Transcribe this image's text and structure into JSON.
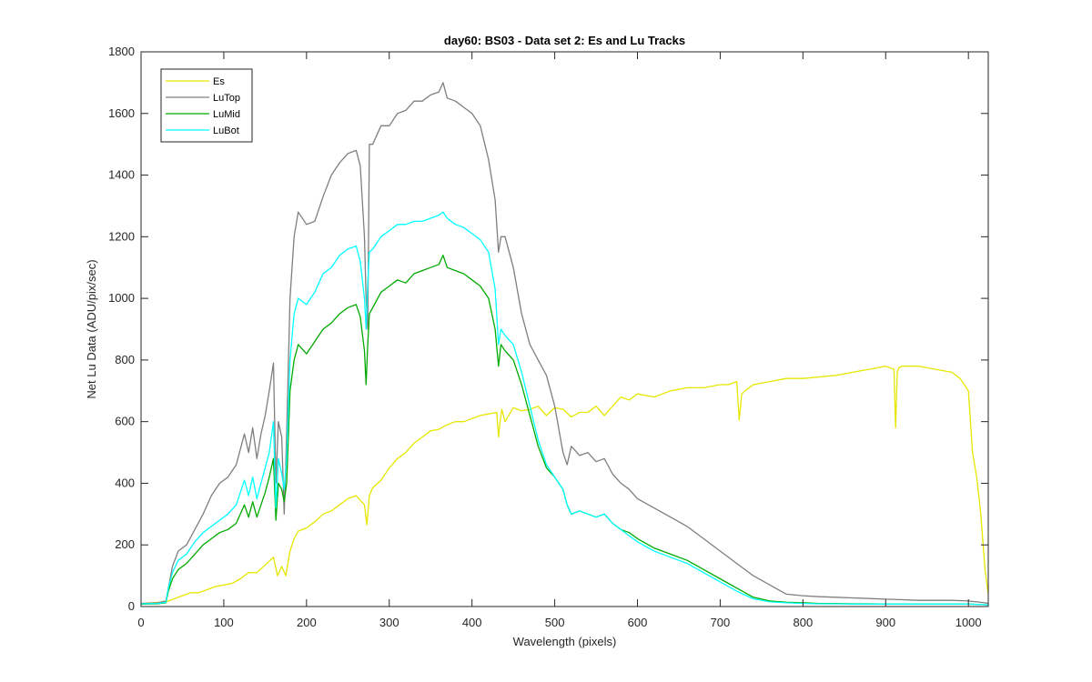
{
  "chart_data": {
    "type": "line",
    "title": "day60: BS03 - Data set 2: Es and Lu Tracks",
    "xlabel": "Wavelength (pixels)",
    "ylabel": "Net Lu Data (ADU/pix/sec)",
    "xlim": [
      0,
      1024
    ],
    "ylim": [
      0,
      1800
    ],
    "xticks": [
      0,
      100,
      200,
      300,
      400,
      500,
      600,
      700,
      800,
      900,
      1000
    ],
    "yticks": [
      0,
      200,
      400,
      600,
      800,
      1000,
      1200,
      1400,
      1600,
      1800
    ],
    "grid": false,
    "legend_position": "top-left",
    "series": [
      {
        "name": "Es",
        "color": "#E6E600",
        "x": [
          0,
          30,
          40,
          50,
          60,
          70,
          80,
          90,
          100,
          110,
          120,
          130,
          140,
          150,
          160,
          165,
          170,
          175,
          180,
          185,
          190,
          200,
          210,
          220,
          230,
          240,
          250,
          260,
          270,
          273,
          276,
          280,
          290,
          300,
          310,
          320,
          330,
          340,
          350,
          360,
          370,
          380,
          390,
          400,
          410,
          420,
          430,
          432,
          434,
          436,
          440,
          450,
          460,
          470,
          480,
          490,
          500,
          510,
          520,
          530,
          540,
          550,
          560,
          570,
          580,
          590,
          600,
          620,
          640,
          660,
          680,
          700,
          710,
          720,
          723,
          726,
          730,
          740,
          760,
          780,
          800,
          820,
          840,
          860,
          880,
          890,
          900,
          910,
          912,
          914,
          916,
          920,
          940,
          960,
          980,
          990,
          1000,
          1005,
          1010,
          1015,
          1020,
          1024
        ],
        "y": [
          10,
          15,
          25,
          35,
          45,
          45,
          55,
          65,
          70,
          75,
          90,
          110,
          110,
          135,
          160,
          100,
          130,
          100,
          180,
          220,
          245,
          255,
          275,
          300,
          310,
          330,
          350,
          360,
          330,
          265,
          360,
          385,
          410,
          450,
          480,
          500,
          530,
          550,
          570,
          575,
          590,
          600,
          600,
          610,
          620,
          625,
          630,
          550,
          600,
          640,
          600,
          645,
          635,
          640,
          650,
          620,
          645,
          640,
          615,
          630,
          630,
          650,
          620,
          650,
          680,
          670,
          690,
          680,
          700,
          710,
          710,
          720,
          720,
          730,
          605,
          690,
          700,
          720,
          730,
          740,
          740,
          745,
          750,
          760,
          770,
          775,
          780,
          770,
          580,
          760,
          775,
          780,
          780,
          770,
          760,
          740,
          700,
          500,
          420,
          300,
          120,
          40
        ]
      },
      {
        "name": "LuTop",
        "color": "#7F7F7F",
        "x": [
          0,
          20,
          30,
          33,
          38,
          45,
          55,
          65,
          75,
          85,
          95,
          105,
          115,
          125,
          130,
          135,
          140,
          145,
          150,
          155,
          160,
          163,
          166,
          170,
          173,
          176,
          180,
          185,
          190,
          200,
          210,
          220,
          230,
          240,
          250,
          260,
          265,
          270,
          272,
          274,
          276,
          280,
          290,
          300,
          310,
          320,
          330,
          340,
          350,
          360,
          365,
          370,
          380,
          390,
          400,
          410,
          420,
          428,
          432,
          435,
          440,
          450,
          460,
          470,
          480,
          490,
          500,
          510,
          515,
          520,
          530,
          540,
          550,
          560,
          570,
          580,
          590,
          600,
          620,
          640,
          660,
          680,
          700,
          720,
          740,
          760,
          780,
          800,
          820,
          840,
          860,
          880,
          900,
          920,
          940,
          960,
          980,
          1000,
          1010,
          1020,
          1024
        ],
        "y": [
          10,
          12,
          18,
          60,
          130,
          180,
          200,
          250,
          300,
          360,
          400,
          420,
          460,
          560,
          500,
          580,
          480,
          560,
          620,
          700,
          790,
          400,
          600,
          550,
          300,
          560,
          1000,
          1200,
          1280,
          1240,
          1250,
          1330,
          1400,
          1440,
          1470,
          1480,
          1430,
          1200,
          1000,
          900,
          1500,
          1500,
          1560,
          1560,
          1600,
          1610,
          1640,
          1640,
          1660,
          1670,
          1700,
          1650,
          1640,
          1620,
          1600,
          1560,
          1450,
          1320,
          1150,
          1200,
          1200,
          1100,
          950,
          850,
          800,
          750,
          650,
          500,
          460,
          520,
          490,
          500,
          470,
          480,
          430,
          400,
          380,
          350,
          320,
          290,
          260,
          220,
          180,
          140,
          100,
          70,
          40,
          35,
          32,
          30,
          28,
          26,
          24,
          22,
          20,
          20,
          20,
          18,
          15,
          12,
          10
        ]
      },
      {
        "name": "LuMid",
        "color": "#00AA00",
        "x": [
          0,
          20,
          30,
          33,
          38,
          45,
          55,
          65,
          75,
          85,
          95,
          105,
          115,
          125,
          130,
          135,
          140,
          145,
          150,
          155,
          160,
          163,
          166,
          170,
          173,
          176,
          180,
          185,
          190,
          200,
          210,
          220,
          230,
          240,
          250,
          260,
          265,
          270,
          272,
          274,
          276,
          280,
          290,
          300,
          310,
          320,
          330,
          340,
          350,
          360,
          365,
          370,
          380,
          390,
          400,
          410,
          420,
          428,
          432,
          435,
          440,
          450,
          460,
          470,
          480,
          490,
          500,
          510,
          515,
          520,
          530,
          540,
          550,
          560,
          570,
          580,
          590,
          600,
          620,
          640,
          660,
          680,
          700,
          720,
          740,
          760,
          780,
          800,
          820,
          840,
          860,
          880,
          900,
          920,
          940,
          960,
          980,
          1000,
          1010,
          1020,
          1024
        ],
        "y": [
          8,
          9,
          12,
          50,
          90,
          120,
          140,
          170,
          200,
          220,
          240,
          250,
          270,
          330,
          290,
          340,
          290,
          330,
          370,
          420,
          480,
          280,
          400,
          380,
          340,
          400,
          700,
          800,
          850,
          820,
          860,
          900,
          920,
          950,
          970,
          980,
          940,
          830,
          720,
          850,
          950,
          970,
          1020,
          1040,
          1060,
          1050,
          1080,
          1090,
          1100,
          1110,
          1140,
          1100,
          1090,
          1080,
          1060,
          1040,
          1000,
          900,
          780,
          850,
          830,
          800,
          720,
          620,
          520,
          450,
          420,
          380,
          330,
          300,
          310,
          300,
          290,
          300,
          270,
          250,
          240,
          220,
          190,
          170,
          150,
          120,
          90,
          60,
          30,
          18,
          14,
          12,
          10,
          10,
          9,
          9,
          8,
          8,
          8,
          8,
          8,
          8,
          7,
          6,
          5
        ]
      },
      {
        "name": "LuBot",
        "color": "#00FFFF",
        "x": [
          0,
          20,
          30,
          33,
          38,
          45,
          55,
          65,
          75,
          85,
          95,
          105,
          115,
          125,
          130,
          135,
          140,
          145,
          150,
          155,
          160,
          163,
          166,
          170,
          173,
          176,
          180,
          185,
          190,
          200,
          210,
          220,
          230,
          240,
          250,
          260,
          265,
          270,
          272,
          274,
          276,
          280,
          290,
          300,
          310,
          320,
          330,
          340,
          350,
          360,
          365,
          370,
          380,
          390,
          400,
          410,
          420,
          428,
          432,
          435,
          440,
          450,
          460,
          470,
          480,
          490,
          500,
          510,
          515,
          520,
          530,
          540,
          550,
          560,
          570,
          580,
          590,
          600,
          620,
          640,
          660,
          680,
          700,
          720,
          740,
          760,
          780,
          800,
          820,
          840,
          860,
          880,
          900,
          920,
          940,
          960,
          980,
          1000,
          1010,
          1020,
          1024
        ],
        "y": [
          9,
          10,
          14,
          60,
          110,
          150,
          170,
          210,
          240,
          260,
          280,
          300,
          330,
          410,
          360,
          420,
          350,
          400,
          450,
          500,
          600,
          320,
          480,
          430,
          380,
          480,
          800,
          950,
          1000,
          980,
          1020,
          1080,
          1100,
          1140,
          1160,
          1170,
          1120,
          1000,
          900,
          1050,
          1150,
          1160,
          1200,
          1220,
          1240,
          1240,
          1250,
          1250,
          1260,
          1270,
          1280,
          1260,
          1240,
          1230,
          1210,
          1190,
          1150,
          1030,
          850,
          900,
          880,
          850,
          760,
          650,
          540,
          460,
          420,
          380,
          330,
          300,
          310,
          300,
          290,
          300,
          270,
          250,
          230,
          210,
          180,
          160,
          140,
          110,
          80,
          50,
          25,
          15,
          12,
          10,
          9,
          9,
          8,
          8,
          8,
          8,
          8,
          8,
          8,
          8,
          7,
          6,
          5
        ]
      }
    ]
  }
}
